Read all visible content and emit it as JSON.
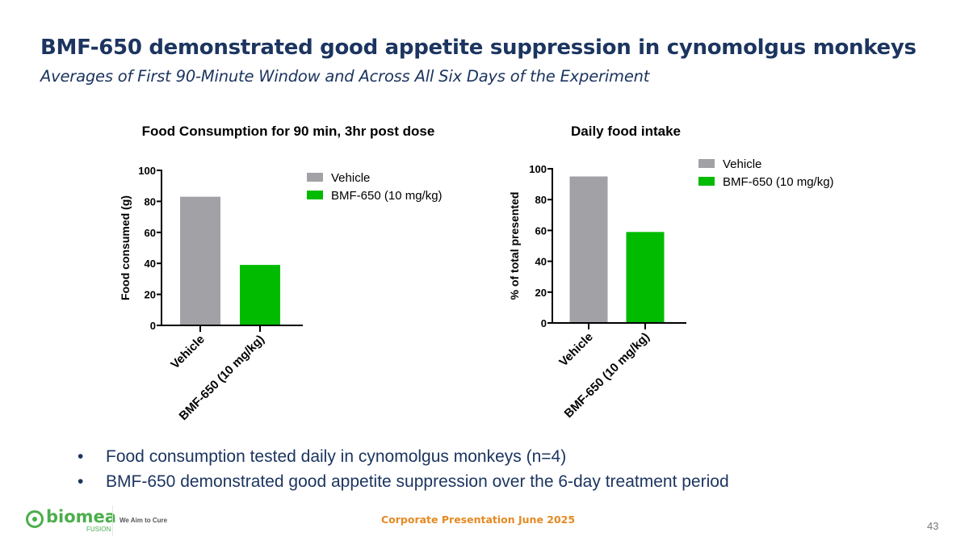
{
  "slide": {
    "title": "BMF-650 demonstrated good appetite suppression in cynomolgus monkeys",
    "subtitle": "Averages of First 90-Minute Window and Across All Six Days of the Experiment",
    "bullets": [
      "Food consumption tested daily in cynomolgus monkeys (n=4)",
      "BMF-650 demonstrated good appetite suppression over the 6-day treatment period"
    ],
    "bullet_glyph": "•",
    "footer": {
      "logo_text": "biomea",
      "logo_sub": "FUSION",
      "tagline": "We Aim to Cure",
      "center": "Corporate Presentation June 2025",
      "page_number": "43"
    }
  },
  "colors": {
    "title": "#1c3560",
    "vehicle": "#a1a1a6",
    "bmf": "#00bb00",
    "footer_accent": "#e58a23",
    "logo": "#4cae4c"
  },
  "chart_data": [
    {
      "type": "bar",
      "title": "Food Consumption for 90 min, 3hr post dose",
      "xlabel": "",
      "ylabel": "Food consumed (g)",
      "categories": [
        "Vehicle",
        "BMF-650 (10 mg/kg)"
      ],
      "values": [
        83,
        39
      ],
      "ylim": [
        0,
        100
      ],
      "yticks": [
        0,
        20,
        40,
        60,
        80,
        100
      ],
      "legend": [
        "Vehicle",
        "BMF-650 (10 mg/kg)"
      ],
      "legend_position": "top-right",
      "grid": false
    },
    {
      "type": "bar",
      "title": "Daily food intake",
      "xlabel": "",
      "ylabel": "% of total presented",
      "categories": [
        "Vehicle",
        "BMF-650 (10 mg/kg)"
      ],
      "values": [
        95,
        59
      ],
      "ylim": [
        0,
        100
      ],
      "yticks": [
        0,
        20,
        40,
        60,
        80,
        100
      ],
      "legend": [
        "Vehicle",
        "BMF-650 (10 mg/kg)"
      ],
      "legend_position": "top-right",
      "grid": false
    }
  ]
}
